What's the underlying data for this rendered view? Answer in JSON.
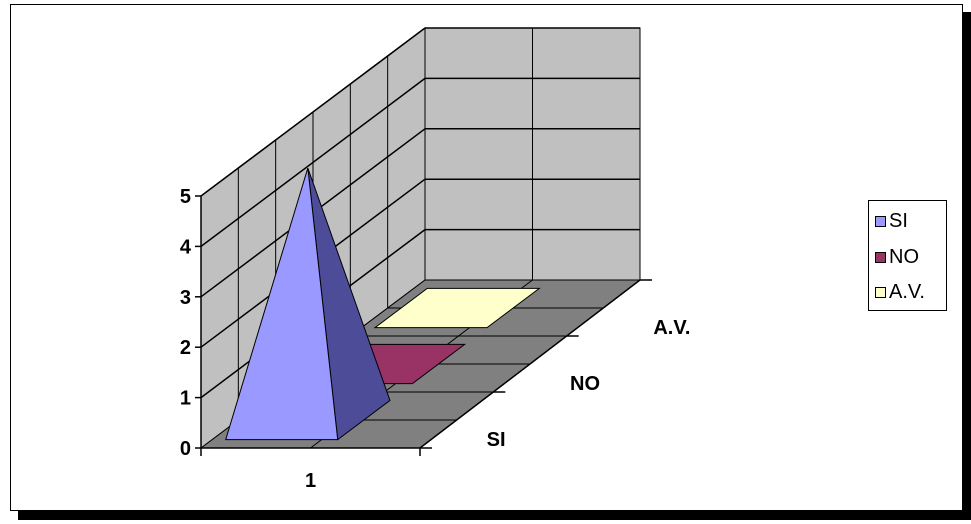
{
  "chart_data": {
    "type": "bar",
    "subtype": "3d-pyramid",
    "categories": [
      "1"
    ],
    "depth_labels": [
      "SI",
      "NO",
      "A.V."
    ],
    "series": [
      {
        "name": "SI",
        "values": [
          5.0
        ],
        "color": "#9999ff"
      },
      {
        "name": "NO",
        "values": [
          0
        ],
        "color": "#993366"
      },
      {
        "name": "A.V.",
        "values": [
          0
        ],
        "color": "#ffffcc"
      }
    ],
    "ylim": [
      0,
      5
    ],
    "yticks": [
      "0",
      "1",
      "2",
      "3",
      "4",
      "5"
    ],
    "grid": true,
    "legend": "right",
    "colors": {
      "wall": "#c0c0c0",
      "floor": "#808080",
      "gridline": "#000000"
    }
  }
}
